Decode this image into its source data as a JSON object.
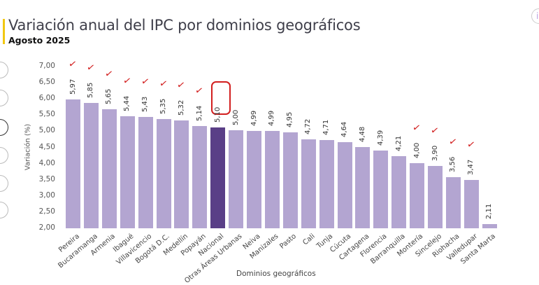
{
  "header": {
    "title": "Variación anual del IPC por dominios geográficos",
    "subtitle": "Agosto 2025"
  },
  "chart_data": {
    "type": "bar",
    "title": "Variación anual del IPC por dominios geográficos",
    "subtitle": "Agosto 2025",
    "xlabel": "Dominios geográficos",
    "ylabel": "Variación (%)",
    "ylim": [
      2.0,
      7.0
    ],
    "yticks": [
      "7,00",
      "6,50",
      "6,00",
      "5,50",
      "5,00",
      "4,50",
      "4,00",
      "3,50",
      "3,00",
      "2,50",
      "2,00"
    ],
    "categories": [
      "Pereira",
      "Bucaramanga",
      "Armenia",
      "Ibagué",
      "Villavicencio",
      "Bogotá D.C.",
      "Medellín",
      "Popayán",
      "Nacional",
      "Otras Áreas Urbanas",
      "Neiva",
      "Manizales",
      "Pasto",
      "Cali",
      "Tunja",
      "Cúcuta",
      "Cartagena",
      "Florencia",
      "Barranquilla",
      "Montería",
      "Sincelejo",
      "Riohacha",
      "Valledupar",
      "Santa Marta"
    ],
    "values": [
      5.97,
      5.85,
      5.65,
      5.44,
      5.43,
      5.35,
      5.32,
      5.14,
      5.1,
      5.0,
      4.99,
      4.99,
      4.95,
      4.72,
      4.71,
      4.64,
      4.48,
      4.39,
      4.21,
      4.0,
      3.9,
      3.56,
      3.47,
      2.11
    ],
    "value_labels": [
      "5,97",
      "5,85",
      "5,65",
      "5,44",
      "5,43",
      "5,35",
      "5,32",
      "5,14",
      "5,10",
      "5,00",
      "4,99",
      "4,99",
      "4,95",
      "4,72",
      "4,71",
      "4,64",
      "4,48",
      "4,39",
      "4,21",
      "4,00",
      "3,90",
      "3,56",
      "3,47",
      "2,11"
    ],
    "highlight": "Nacional",
    "colors": {
      "bar": "#b3a5d1",
      "highlight": "#5a3f87",
      "annotation": "#d21f1f"
    },
    "grid": false,
    "legend": "none",
    "annotations": {
      "checkmarks_on": [
        "Pereira",
        "Bucaramanga",
        "Armenia",
        "Ibagué",
        "Villavicencio",
        "Bogotá D.C.",
        "Medellín",
        "Popayán",
        "Montería",
        "Sincelejo",
        "Riohacha",
        "Valledupar"
      ],
      "circled": "Nacional"
    }
  }
}
